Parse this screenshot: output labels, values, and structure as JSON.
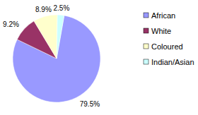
{
  "chart_data": {
    "type": "pie",
    "categories": [
      "African",
      "White",
      "Coloured",
      "Indian/Asian"
    ],
    "values": [
      79.5,
      9.2,
      8.9,
      2.5
    ],
    "value_labels": [
      "79.5%",
      "9.2%",
      "8.9%",
      "2.5%"
    ],
    "colors": [
      "#9999ff",
      "#993366",
      "#ffffcc",
      "#ccffff"
    ],
    "data_labels": true,
    "legend": "right"
  }
}
